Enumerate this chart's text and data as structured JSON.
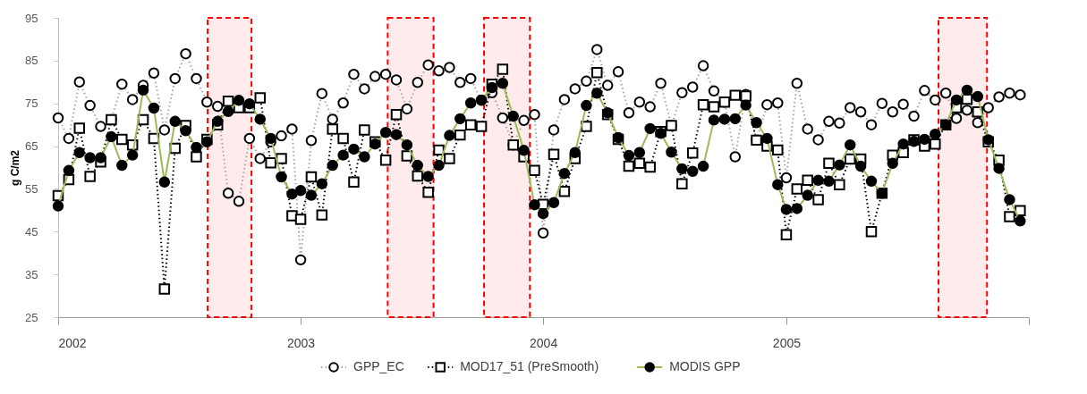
{
  "chart_data": {
    "type": "line",
    "ylabel": "g C/m2",
    "ylim": [
      25,
      95
    ],
    "yticks": [
      25,
      35,
      45,
      55,
      65,
      75,
      85,
      95
    ],
    "xlim": [
      "2002-01-01",
      "2006-01-01"
    ],
    "xticks": [
      {
        "value": "2002-01-01",
        "label": "2002"
      },
      {
        "value": "2003-01-01",
        "label": "2003"
      },
      {
        "value": "2004-01-01",
        "label": "2004"
      },
      {
        "value": "2005-01-01",
        "label": "2005"
      },
      {
        "value": "2006-01-01",
        "label": null
      }
    ],
    "grid": false,
    "legend": "bottom",
    "x": [
      "2002-01-01",
      "2002-01-17",
      "2002-02-02",
      "2002-02-18",
      "2002-03-06",
      "2002-03-22",
      "2002-04-07",
      "2002-04-23",
      "2002-05-09",
      "2002-05-25",
      "2002-06-10",
      "2002-06-26",
      "2002-07-12",
      "2002-07-28",
      "2002-08-13",
      "2002-08-29",
      "2002-09-14",
      "2002-09-30",
      "2002-10-16",
      "2002-11-01",
      "2002-11-17",
      "2002-12-03",
      "2002-12-19",
      "2003-01-01",
      "2003-01-17",
      "2003-02-02",
      "2003-02-18",
      "2003-03-06",
      "2003-03-22",
      "2003-04-07",
      "2003-04-23",
      "2003-05-09",
      "2003-05-25",
      "2003-06-10",
      "2003-06-26",
      "2003-07-12",
      "2003-07-28",
      "2003-08-13",
      "2003-08-29",
      "2003-09-14",
      "2003-09-30",
      "2003-10-16",
      "2003-11-01",
      "2003-11-17",
      "2003-12-03",
      "2003-12-19",
      "2004-01-01",
      "2004-01-17",
      "2004-02-02",
      "2004-02-18",
      "2004-03-06",
      "2004-03-22",
      "2004-04-07",
      "2004-04-23",
      "2004-05-09",
      "2004-05-25",
      "2004-06-10",
      "2004-06-26",
      "2004-07-12",
      "2004-07-28",
      "2004-08-13",
      "2004-08-29",
      "2004-09-14",
      "2004-09-30",
      "2004-10-16",
      "2004-11-01",
      "2004-11-17",
      "2004-12-03",
      "2004-12-19",
      "2005-01-01",
      "2005-01-17",
      "2005-02-02",
      "2005-02-18",
      "2005-03-06",
      "2005-03-22",
      "2005-04-07",
      "2005-04-23",
      "2005-05-09",
      "2005-05-25",
      "2005-06-10",
      "2005-06-26",
      "2005-07-12",
      "2005-07-28",
      "2005-08-13",
      "2005-08-29",
      "2005-09-14",
      "2005-09-30",
      "2005-10-16",
      "2005-11-01",
      "2005-11-17",
      "2005-12-03",
      "2005-12-19"
    ],
    "series": [
      {
        "name": "GPP_EC",
        "color": "#a6a6a6",
        "marker": "circle",
        "line_style": "dotted",
        "values": [
          71.6,
          66.8,
          80,
          74.5,
          69.6,
          71.2,
          79.5,
          75.9,
          79.2,
          82.1,
          68.8,
          80.8,
          86.6,
          80.8,
          75.3,
          74.3,
          54,
          52.1,
          66.8,
          62.1,
          66,
          67.4,
          69,
          38.4,
          66.3,
          77.3,
          71.3,
          75.1,
          81.8,
          78.4,
          81.3,
          81.8,
          80.5,
          73.7,
          79.9,
          84,
          82.6,
          83.4,
          79.9,
          80.8,
          75.7,
          77.5,
          71.6,
          65.3,
          71,
          72.4,
          44.7,
          68.8,
          75.9,
          78.4,
          80.2,
          87.6,
          79.2,
          82.4,
          72.8,
          75.3,
          74.2,
          79.7,
          69.8,
          77.5,
          78.8,
          83.8,
          77.9,
          75.3,
          62.5,
          77.1,
          66.4,
          74.7,
          75.1,
          57.6,
          79.7,
          69,
          66.5,
          70.8,
          70.4,
          74,
          73,
          70,
          75,
          73,
          74.8,
          72,
          78,
          75.8,
          77.4,
          71.5,
          73.4,
          70.5,
          74,
          76.5,
          77.4,
          77
        ]
      },
      {
        "name": "MOD17_51 (PreSmooth)",
        "color": "#000000",
        "marker": "square",
        "line_style": "dotted",
        "values": [
          53.4,
          57.2,
          69.2,
          57.9,
          61.3,
          71.2,
          66.6,
          65.3,
          71.2,
          66.8,
          31.6,
          64.5,
          69.8,
          62.5,
          66.6,
          70,
          75.5,
          74,
          74,
          76.3,
          61.1,
          62.1,
          48.7,
          47.9,
          57.8,
          48.9,
          69,
          66.8,
          56.6,
          68.8,
          66,
          61.7,
          72.4,
          62.7,
          58,
          54.2,
          64.1,
          62.1,
          67.6,
          70,
          69.6,
          79.5,
          83,
          65.3,
          62.5,
          59.3,
          51.4,
          63.1,
          54.4,
          62.1,
          69.6,
          82.2,
          72.4,
          66.6,
          60.3,
          61,
          60.1,
          68.4,
          69.8,
          56.2,
          63.4,
          74.7,
          74.2,
          75.3,
          76.9,
          76.7,
          66.4,
          65,
          64.1,
          44.3,
          55,
          57,
          52.5,
          61,
          56,
          62,
          62,
          45,
          54,
          62.9,
          63.5,
          66.5,
          65,
          65.5,
          70,
          74,
          76,
          73,
          66,
          61.7,
          48.5,
          49.9
        ]
      },
      {
        "name": "MODIS GPP",
        "color": "#9bbb59",
        "marker": "circle",
        "line_style": "solid",
        "values": [
          51.0,
          59.3,
          63.5,
          62.3,
          62.3,
          67.2,
          60.5,
          62.9,
          78.1,
          73.9,
          56.6,
          70.8,
          68.6,
          64.7,
          66,
          70.8,
          73.1,
          75.7,
          74.9,
          71.3,
          66.8,
          57.8,
          53.8,
          54.6,
          53.5,
          56.2,
          60.5,
          62.9,
          64.3,
          62.5,
          65.5,
          68.2,
          67.7,
          65.3,
          60.5,
          57.9,
          60.5,
          67.5,
          71.4,
          75.1,
          75.8,
          78.7,
          79.7,
          72,
          64,
          51.3,
          49.2,
          51.8,
          58.6,
          63.5,
          74.5,
          77.4,
          72.8,
          67,
          62.8,
          63.5,
          69.1,
          68,
          63.6,
          59.7,
          59.1,
          60.3,
          71.1,
          71.3,
          71.4,
          74.6,
          70.5,
          66.8,
          56,
          50.2,
          50.4,
          53.5,
          57,
          56.8,
          60.6,
          65.3,
          60.3,
          56.8,
          54,
          61,
          65.5,
          66.1,
          66.6,
          67.8,
          70,
          75.8,
          78.1,
          76.6,
          66.5,
          59.8,
          52.5,
          47.5
        ]
      }
    ],
    "bands": [
      {
        "axis": "x",
        "from": "2002-08-14",
        "to": "2002-10-19",
        "color": "#ff0000"
      },
      {
        "axis": "x",
        "from": "2003-05-12",
        "to": "2003-07-20",
        "color": "#ff0000"
      },
      {
        "axis": "x",
        "from": "2003-10-04",
        "to": "2003-12-12",
        "color": "#ff0000"
      },
      {
        "axis": "x",
        "from": "2005-08-18",
        "to": "2005-10-30",
        "color": "#ff0000"
      }
    ]
  }
}
